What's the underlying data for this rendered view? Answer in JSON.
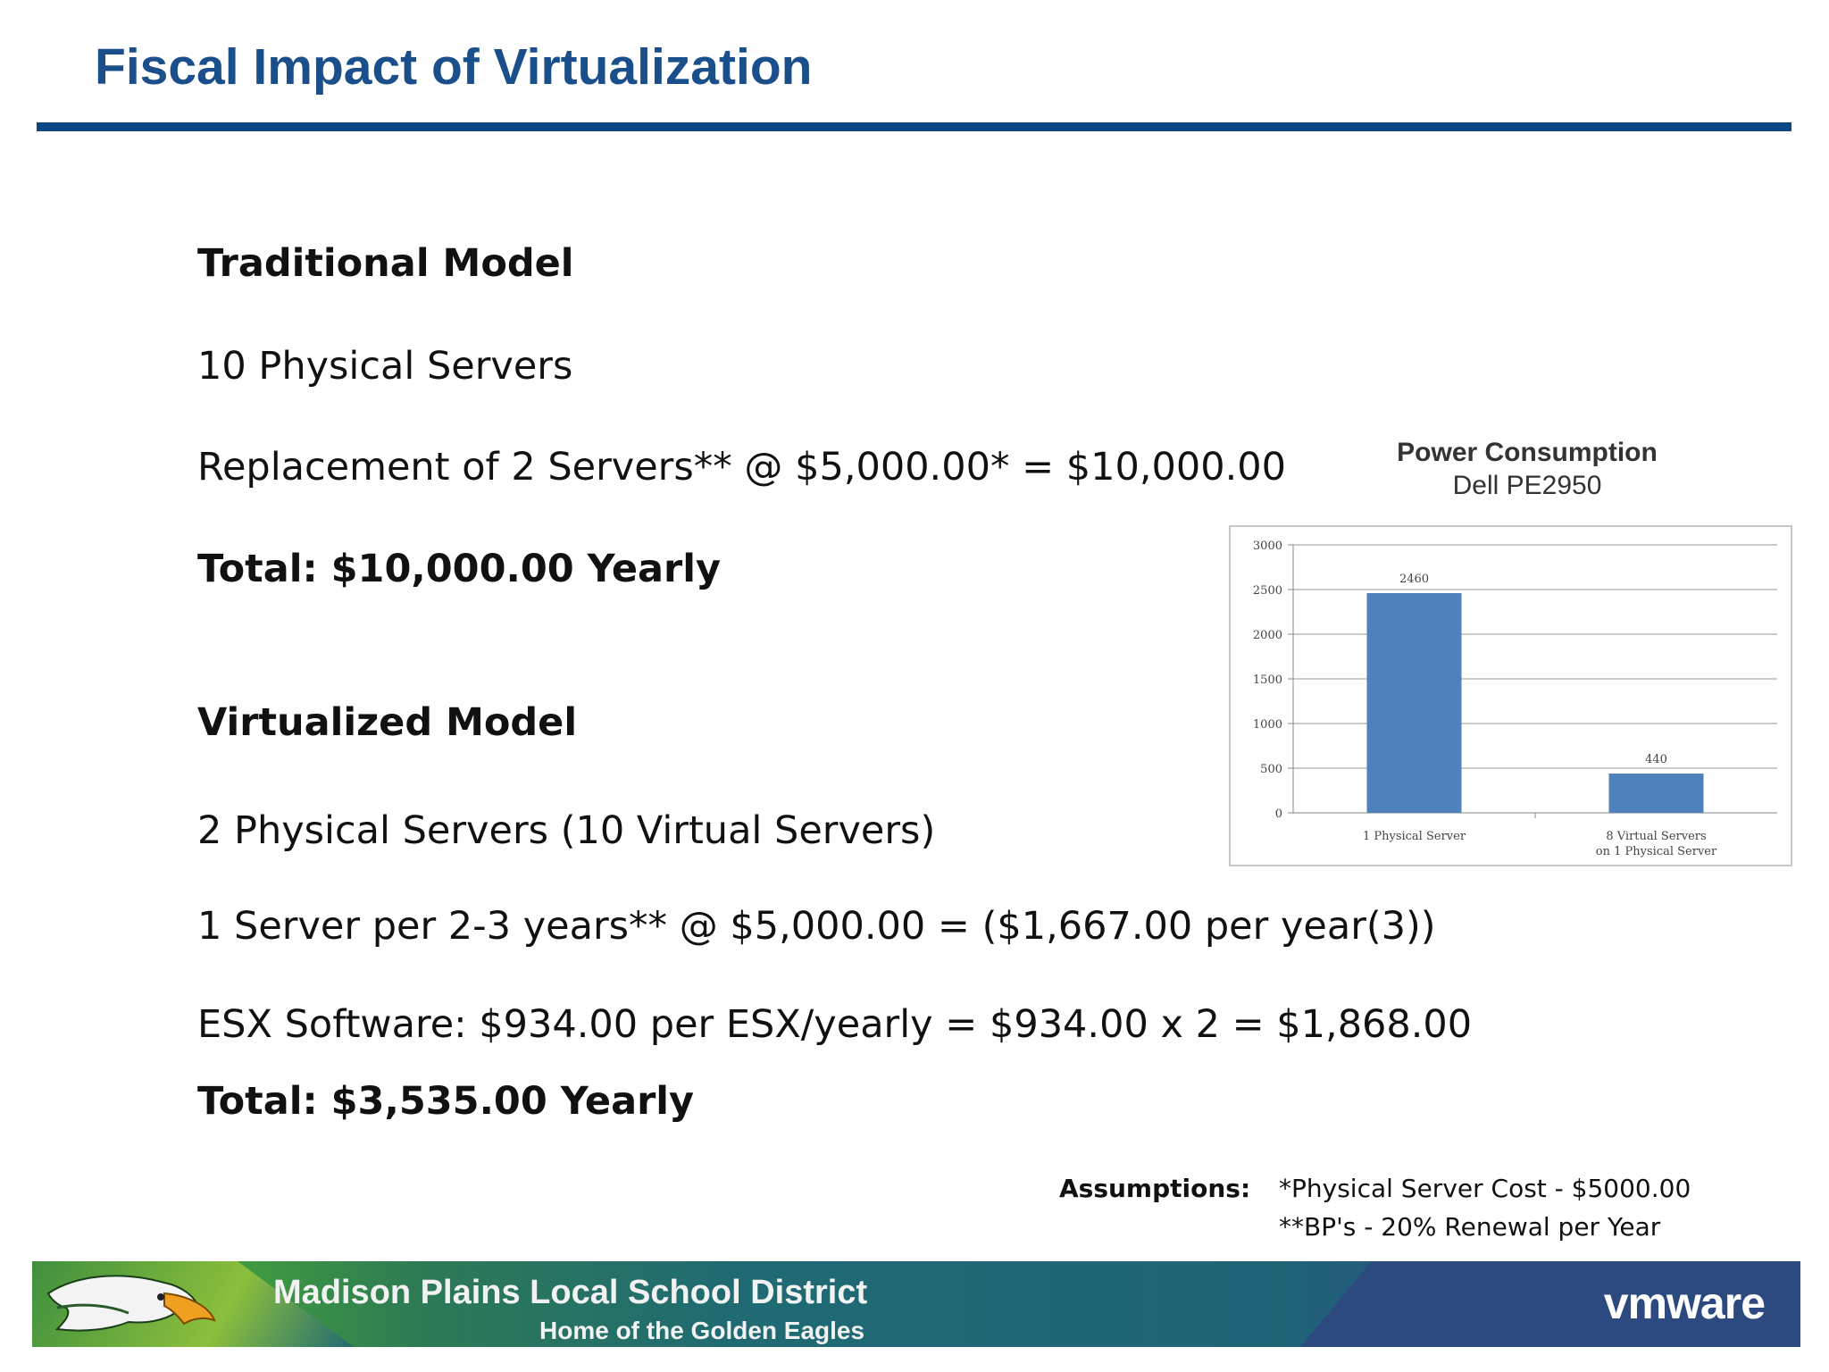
{
  "header": {
    "title": "Fiscal Impact of Virtualization"
  },
  "traditional": {
    "heading": "Traditional Model",
    "line1": "10 Physical Servers",
    "line2": "Replacement of 2 Servers** @ $5,000.00* = $10,000.00",
    "total": "Total: $10,000.00 Yearly"
  },
  "virtualized": {
    "heading": "Virtualized Model",
    "line1": "2 Physical Servers (10 Virtual Servers)",
    "line2": "1 Server per 2-3 years** @ $5,000.00 = ($1,667.00 per year(3))",
    "line3": "ESX Software: $934.00 per ESX/yearly = $934.00 x 2 = $1,868.00",
    "total": "Total: $3,535.00 Yearly"
  },
  "chart_data": {
    "type": "bar",
    "title": "Power Consumption",
    "subtitle": "Dell PE2950",
    "categories": [
      "1 Physical Server",
      "8 Virtual Servers on 1 Physical Server"
    ],
    "values": [
      2460,
      440
    ],
    "ylim": [
      0,
      3000
    ],
    "yticks": [
      0,
      500,
      1000,
      1500,
      2000,
      2500,
      3000
    ],
    "grid": true,
    "bar_color": "#4f81bd"
  },
  "assumptions": {
    "label": "Assumptions:",
    "items": [
      "*Physical Server Cost - $5000.00",
      "**BP's - 20% Renewal per Year"
    ]
  },
  "footer": {
    "district": "Madison  Plains Local School District",
    "tagline": "Home of the Golden Eagles",
    "brand": "vmware"
  }
}
